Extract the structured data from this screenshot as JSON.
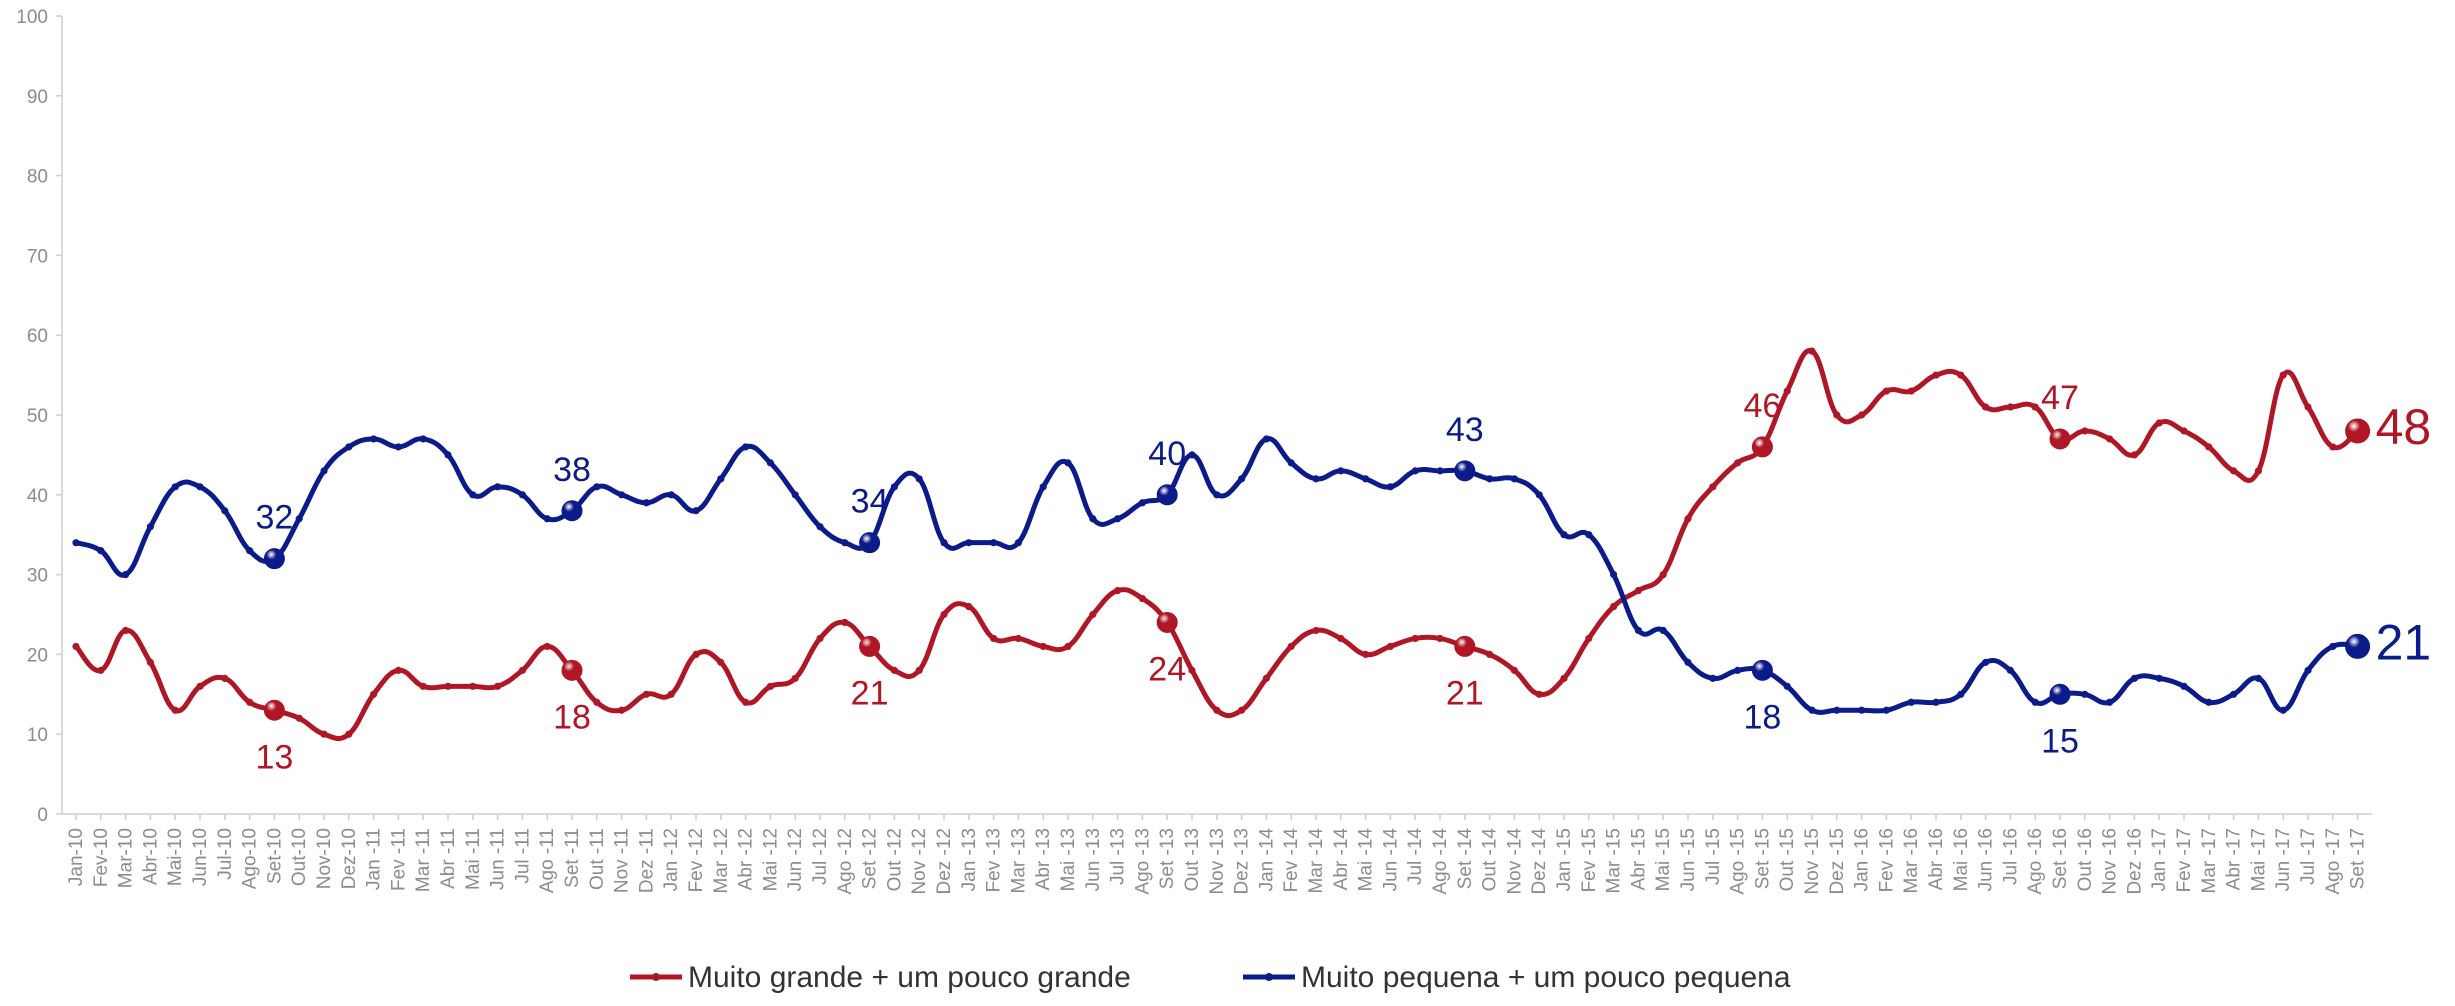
{
  "chart_data": {
    "type": "line",
    "title": "",
    "xlabel": "",
    "ylabel": "",
    "ylim": [
      0,
      100
    ],
    "yticks": [
      0,
      10,
      20,
      30,
      40,
      50,
      60,
      70,
      80,
      90,
      100
    ],
    "grid": false,
    "legend_position": "bottom",
    "x": [
      "Jan-10",
      "Fev-10",
      "Mar-10",
      "Abr-10",
      "Mai-10",
      "Jun-10",
      "Jul-10",
      "Ago-10",
      "Set-10",
      "Out-10",
      "Nov-10",
      "Dez-10",
      "Jan -11",
      "Fev -11",
      "Mar -11",
      "Abr -11",
      "Mai -11",
      "Jun -11",
      "Jul -11",
      "Ago -11",
      "Set -11",
      "Out -11",
      "Nov -11",
      "Dez -11",
      "Jan -12",
      "Fev -12",
      "Mar -12",
      "Abr -12",
      "Mai -12",
      "Jun -12",
      "Jul -12",
      "Ago -12",
      "Set -12",
      "Out -12",
      "Nov -12",
      "Dez -12",
      "Jan -13",
      "Fev -13",
      "Mar -13",
      "Abr -13",
      "Mai -13",
      "Jun -13",
      "Jul -13",
      "Ago -13",
      "Set -13",
      "Out -13",
      "Nov -13",
      "Dez -13",
      "Jan -14",
      "Fev -14",
      "Mar -14",
      "Abr -14",
      "Mai -14",
      "Jun -14",
      "Jul -14",
      "Ago -14",
      "Set -14",
      "Out -14",
      "Nov -14",
      "Dez -14",
      "Jan -15",
      "Fev -15",
      "Mar -15",
      "Abr -15",
      "Mai -15",
      "Jun -15",
      "Jul -15",
      "Ago -15",
      "Set -15",
      "Out -15",
      "Nov -15",
      "Dez -15",
      "Jan -16",
      "Fev -16",
      "Mar -16",
      "Abr -16",
      "Mai -16",
      "Jun -16",
      "Jul -16",
      "Ago -16",
      "Set -16",
      "Out -16",
      "Nov -16",
      "Dez -16",
      "Jan -17",
      "Fev -17",
      "Mar -17",
      "Abr -17",
      "Mai -17",
      "Jun -17",
      "Jul -17",
      "Ago -17",
      "Set -17"
    ],
    "series": [
      {
        "name": "Muito grande + um pouco grande",
        "color": "#b01726",
        "values": [
          21,
          18,
          23,
          19,
          13,
          16,
          17,
          14,
          13,
          12,
          10,
          10,
          15,
          18,
          16,
          16,
          16,
          16,
          18,
          21,
          18,
          14,
          13,
          15,
          15,
          20,
          19,
          14,
          16,
          17,
          22,
          24,
          21,
          18,
          18,
          25,
          26,
          22,
          22,
          21,
          21,
          25,
          28,
          27,
          24,
          18,
          13,
          13,
          17,
          21,
          23,
          22,
          20,
          21,
          22,
          22,
          21,
          20,
          18,
          15,
          17,
          22,
          26,
          28,
          30,
          37,
          41,
          44,
          46,
          53,
          58,
          50,
          50,
          53,
          53,
          55,
          55,
          51,
          51,
          51,
          47,
          48,
          47,
          45,
          49,
          48,
          46,
          43,
          43,
          55,
          51,
          46,
          48
        ],
        "markers": [
          {
            "index": 8,
            "label": "13"
          },
          {
            "index": 20,
            "label": "18"
          },
          {
            "index": 32,
            "label": "21"
          },
          {
            "index": 44,
            "label": "24"
          },
          {
            "index": 56,
            "label": "21"
          },
          {
            "index": 68,
            "label": "46"
          },
          {
            "index": 80,
            "label": "47"
          },
          {
            "index": 92,
            "label": "48"
          }
        ]
      },
      {
        "name": "Muito pequena + um pouco pequena",
        "color": "#0c1b8a",
        "values": [
          34,
          33,
          30,
          36,
          41,
          41,
          38,
          33,
          32,
          37,
          43,
          46,
          47,
          46,
          47,
          45,
          40,
          41,
          40,
          37,
          38,
          41,
          40,
          39,
          40,
          38,
          42,
          46,
          44,
          40,
          36,
          34,
          34,
          41,
          42,
          34,
          34,
          34,
          34,
          41,
          44,
          37,
          37,
          39,
          40,
          45,
          40,
          42,
          47,
          44,
          42,
          43,
          42,
          41,
          43,
          43,
          43,
          42,
          42,
          40,
          35,
          35,
          30,
          23,
          23,
          19,
          17,
          18,
          18,
          16,
          13,
          13,
          13,
          13,
          14,
          14,
          15,
          19,
          18,
          14,
          15,
          15,
          14,
          17,
          17,
          16,
          14,
          15,
          17,
          13,
          18,
          21,
          21
        ],
        "markers": [
          {
            "index": 8,
            "label": "32"
          },
          {
            "index": 20,
            "label": "38"
          },
          {
            "index": 32,
            "label": "34"
          },
          {
            "index": 44,
            "label": "40"
          },
          {
            "index": 56,
            "label": "43"
          },
          {
            "index": 68,
            "label": "18"
          },
          {
            "index": 80,
            "label": "15"
          },
          {
            "index": 92,
            "label": "21"
          }
        ]
      }
    ]
  }
}
